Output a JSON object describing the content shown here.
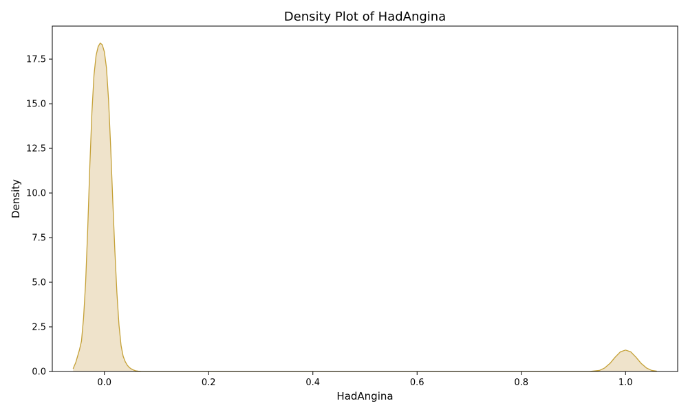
{
  "chart_data": {
    "type": "area",
    "title": "Density Plot of HadAngina",
    "xlabel": "HadAngina",
    "ylabel": "Density",
    "xlim": [
      -0.1,
      1.1
    ],
    "ylim": [
      0,
      19.35
    ],
    "x_ticks": [
      0.0,
      0.2,
      0.4,
      0.6,
      0.8,
      1.0
    ],
    "x_tick_labels": [
      "0.0",
      "0.2",
      "0.4",
      "0.6",
      "0.8",
      "1.0"
    ],
    "y_ticks": [
      0.0,
      2.5,
      5.0,
      7.5,
      10.0,
      12.5,
      15.0,
      17.5
    ],
    "y_tick_labels": [
      "0.0",
      "2.5",
      "5.0",
      "7.5",
      "10.0",
      "12.5",
      "15.0",
      "17.5"
    ],
    "grid": false,
    "legend": "none",
    "colors": {
      "line": "#C4A035",
      "fill": "#EFE3CB"
    },
    "series": [
      {
        "x": [
          -0.06,
          -0.058,
          -0.055,
          -0.052,
          -0.048,
          -0.044,
          -0.04,
          -0.036,
          -0.032,
          -0.028,
          -0.024,
          -0.02,
          -0.016,
          -0.012,
          -0.008,
          -0.004,
          0.0,
          0.004,
          0.008,
          0.012,
          0.016,
          0.02,
          0.024,
          0.028,
          0.032,
          0.036,
          0.04,
          0.044,
          0.048,
          0.052,
          0.056,
          0.06,
          0.065,
          0.07,
          0.08,
          0.1,
          0.2,
          0.4,
          0.6,
          0.8,
          0.9,
          0.93,
          0.95,
          0.96,
          0.97,
          0.98,
          0.99,
          1.0,
          1.01,
          1.02,
          1.03,
          1.04,
          1.05,
          1.06
        ],
        "y": [
          0.15,
          0.3,
          0.5,
          0.8,
          1.2,
          1.7,
          3.0,
          5.0,
          8.0,
          11.5,
          14.5,
          16.6,
          17.7,
          18.2,
          18.4,
          18.3,
          17.9,
          17.0,
          15.2,
          12.6,
          9.6,
          6.8,
          4.4,
          2.6,
          1.45,
          0.85,
          0.55,
          0.35,
          0.22,
          0.14,
          0.08,
          0.04,
          0.02,
          0.01,
          0.0,
          0.0,
          0.0,
          0.0,
          0.0,
          0.0,
          0.0,
          0.0,
          0.06,
          0.2,
          0.45,
          0.8,
          1.1,
          1.2,
          1.1,
          0.8,
          0.45,
          0.2,
          0.06,
          0.02
        ]
      }
    ]
  }
}
